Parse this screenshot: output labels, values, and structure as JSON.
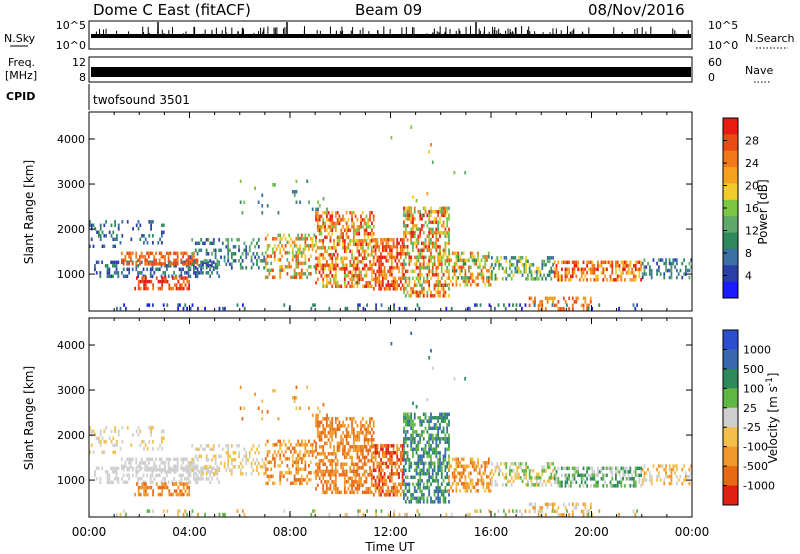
{
  "header": {
    "title": "Dome C East (fitACF)",
    "beam": "Beam 09",
    "date": "08/Nov/2016"
  },
  "noise_panel": {
    "left_label": "N.Sky",
    "left_ticks": [
      "10^5",
      "10^0"
    ],
    "right_ticks": [
      "10^5",
      "10^0"
    ],
    "right_label": "N.Search"
  },
  "freq_panel": {
    "left_label_1": "Freq.",
    "left_label_2": "[MHz]",
    "left_ticks": [
      "12",
      "8"
    ],
    "right_ticks": [
      "60",
      "0"
    ],
    "right_label": "Nave"
  },
  "cpid": {
    "label": "CPID",
    "value": "twofsound 3501"
  },
  "time_axis": {
    "ticks": [
      "00:00",
      "04:00",
      "08:00",
      "12:00",
      "16:00",
      "20:00",
      "00:00"
    ],
    "title": "Time UT"
  },
  "chart_data": [
    {
      "type": "heatmap",
      "name": "power",
      "ylabel": "Slant Range [km]",
      "yticks": [
        "1000",
        "2000",
        "3000",
        "4000"
      ],
      "ylim": [
        180,
        4600
      ],
      "xlim": [
        "00:00",
        "24:00"
      ],
      "colorbar": {
        "label": "Power [dB]",
        "ticks": [
          "28",
          "24",
          "20",
          "16",
          "12",
          "8",
          "4"
        ],
        "range": [
          0,
          32
        ],
        "colors": [
          "#1a1aff",
          "#2c3fa8",
          "#3b6fa3",
          "#2e8a5c",
          "#5fa86a",
          "#7cc742",
          "#f2cc2a",
          "#f5a020",
          "#f07a1a",
          "#ea4a14",
          "#e81a12"
        ]
      }
    },
    {
      "type": "heatmap",
      "name": "velocity",
      "ylabel": "Slant Range [km]",
      "yticks": [
        "1000",
        "2000",
        "3000",
        "4000"
      ],
      "ylim": [
        180,
        4600
      ],
      "xlim": [
        "00:00",
        "24:00"
      ],
      "colorbar": {
        "label": "Velocity [m s^-1]",
        "ticks": [
          "1000",
          "500",
          "100",
          "25",
          "-25",
          "-100",
          "-500",
          "-1000"
        ],
        "colors": [
          "#2b4fcf",
          "#3a68b0",
          "#2e8a5c",
          "#5fb642",
          "#cfcfcf",
          "#f2c04a",
          "#f0982a",
          "#e86a14",
          "#e02010"
        ]
      }
    }
  ]
}
